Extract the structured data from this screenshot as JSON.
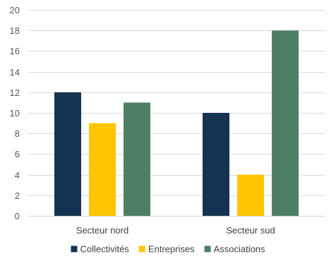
{
  "chart_data": {
    "type": "bar",
    "categories": [
      "Secteur nord",
      "Secteur sud"
    ],
    "series": [
      {
        "name": "Collectivités",
        "values": [
          12,
          10
        ],
        "color": "#163451"
      },
      {
        "name": "Entreprises",
        "values": [
          9,
          4
        ],
        "color": "#FFC600"
      },
      {
        "name": "Associations",
        "values": [
          11,
          18
        ],
        "color": "#4E7F66"
      }
    ],
    "ylim": [
      0,
      20
    ],
    "yticks": [
      0,
      2,
      4,
      6,
      8,
      10,
      12,
      14,
      16,
      18,
      20
    ],
    "grid": true,
    "legend_position": "bottom"
  }
}
